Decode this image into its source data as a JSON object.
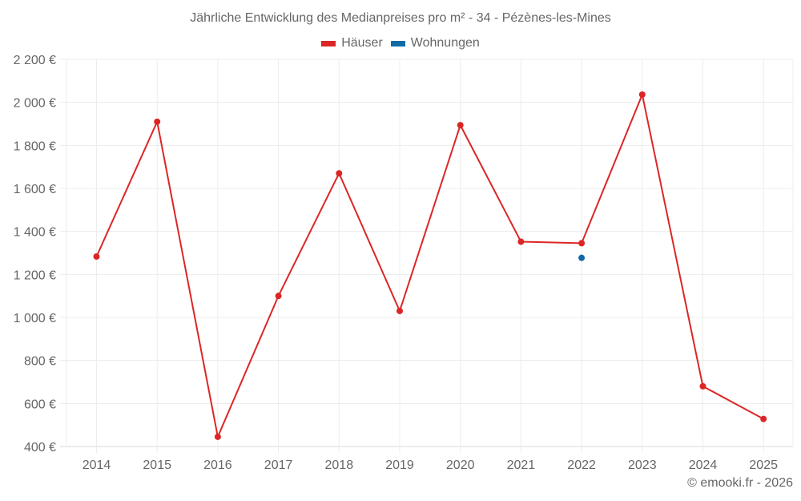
{
  "title": "Jährliche Entwicklung des Medianpreises pro m² - 34 - Pézènes-les-Mines",
  "legend": [
    {
      "label": "Häuser",
      "color": "#dc2626"
    },
    {
      "label": "Wohnungen",
      "color": "#0f6aa5"
    }
  ],
  "footer": "© emooki.fr - 2026",
  "chart_data": {
    "type": "line",
    "title": "Jährliche Entwicklung des Medianpreises pro m² - 34 - Pézènes-les-Mines",
    "xlabel": "",
    "ylabel": "",
    "categories": [
      "2014",
      "2015",
      "2016",
      "2017",
      "2018",
      "2019",
      "2020",
      "2021",
      "2022",
      "2023",
      "2024",
      "2025"
    ],
    "series": [
      {
        "name": "Häuser",
        "color": "#dc2626",
        "values": [
          1283,
          1910,
          445,
          1100,
          1670,
          1030,
          1894,
          1352,
          1345,
          2036,
          680,
          528
        ]
      },
      {
        "name": "Wohnungen",
        "color": "#0f6aa5",
        "values": [
          null,
          null,
          null,
          null,
          null,
          null,
          null,
          null,
          1277,
          null,
          null,
          null
        ]
      }
    ],
    "ylim": [
      400,
      2200
    ],
    "yticks": [
      400,
      600,
      800,
      1000,
      1200,
      1400,
      1600,
      1800,
      2000,
      2200
    ],
    "ytick_labels": [
      "400 €",
      "600 €",
      "800 €",
      "1 000 €",
      "1 200 €",
      "1 400 €",
      "1 600 €",
      "1 800 €",
      "2 000 €",
      "2 200 €"
    ],
    "grid": true,
    "legend_position": "top"
  }
}
